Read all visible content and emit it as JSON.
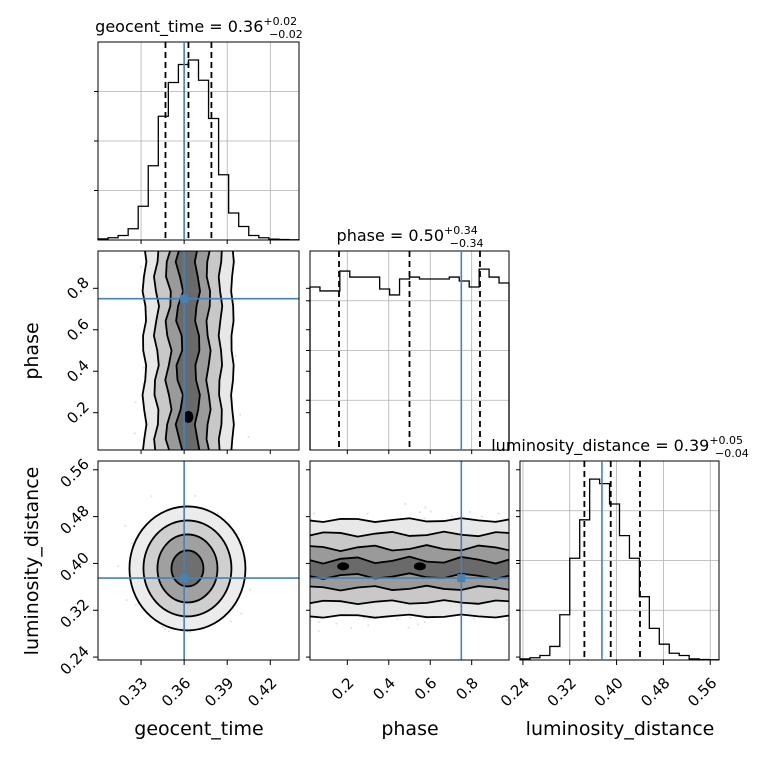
{
  "colors": {
    "truth": "#4682b4",
    "line": "#000000",
    "grid": "#b0b0b0",
    "scatter": "#9a9a9a"
  },
  "chart_data": {
    "type": "corner",
    "parameters": [
      "geocent_time",
      "phase",
      "luminosity_distance"
    ],
    "axis_labels": {
      "geocent_time": "geocent_time",
      "phase": "phase",
      "luminosity_distance": "luminosity_distance"
    },
    "ranges": {
      "geocent_time": [
        0.3,
        0.44
      ],
      "phase": [
        0.02,
        0.98
      ],
      "luminosity_distance": [
        0.235,
        0.575
      ]
    },
    "ticks": {
      "geocent_time": [
        "0.33",
        "0.36",
        "0.39",
        "0.42"
      ],
      "phase": [
        "0.2",
        "0.4",
        "0.6",
        "0.8"
      ],
      "luminosity_distance": [
        "0.24",
        "0.32",
        "0.40",
        "0.48",
        "0.56"
      ]
    },
    "truths": {
      "geocent_time": 0.36,
      "phase": 0.75,
      "luminosity_distance": 0.375
    },
    "quantiles": {
      "geocent_time": [
        0.347,
        0.363,
        0.379
      ],
      "phase": [
        0.16,
        0.5,
        0.84
      ],
      "luminosity_distance": [
        0.345,
        0.39,
        0.44
      ]
    },
    "titles": {
      "geocent_time": {
        "text": "geocent_time = 0.36",
        "plus": "+0.02",
        "minus": "−0.02"
      },
      "phase": {
        "text": "phase = 0.50",
        "plus": "+0.34",
        "minus": "−0.34"
      },
      "luminosity_distance": {
        "text": "luminosity_distance = 0.39",
        "plus": "+0.05",
        "minus": "−0.04"
      }
    },
    "histograms": {
      "geocent_time": {
        "edges": [
          0.3,
          0.307,
          0.314,
          0.321,
          0.328,
          0.335,
          0.342,
          0.349,
          0.356,
          0.363,
          0.37,
          0.377,
          0.384,
          0.391,
          0.398,
          0.405,
          0.412,
          0.419,
          0.426,
          0.433,
          0.44
        ],
        "counts": [
          0.5,
          1,
          2,
          5,
          15,
          33,
          55,
          70,
          78,
          80,
          71,
          54,
          29,
          12,
          6,
          2,
          1,
          0.4,
          0.2,
          0.1
        ]
      },
      "phase": {
        "edges": [
          0.02,
          0.068,
          0.116,
          0.164,
          0.212,
          0.26,
          0.308,
          0.356,
          0.404,
          0.452,
          0.5,
          0.548,
          0.596,
          0.644,
          0.692,
          0.74,
          0.788,
          0.836,
          0.884,
          0.932,
          0.98
        ],
        "counts": [
          82,
          80,
          80,
          90,
          87,
          87,
          87,
          81,
          78,
          86,
          87,
          86,
          86,
          86,
          87,
          85,
          82,
          91,
          87,
          84
        ]
      },
      "luminosity_distance": {
        "edges": [
          0.235,
          0.252,
          0.269,
          0.286,
          0.303,
          0.32,
          0.337,
          0.354,
          0.371,
          0.388,
          0.405,
          0.422,
          0.439,
          0.456,
          0.473,
          0.49,
          0.507,
          0.524,
          0.541,
          0.558,
          0.575
        ],
        "counts": [
          0.5,
          1,
          2,
          6,
          20,
          45,
          62,
          80,
          78,
          69,
          55,
          45,
          28,
          14,
          7,
          3,
          2,
          0.5,
          0.2,
          0.1
        ]
      }
    },
    "contour_levels": [
      0.12,
      0.35,
      0.6,
      0.85
    ],
    "contour_peaks": [
      {
        "pair": "phase|geocent_time",
        "x": 0.363,
        "y": 0.18
      },
      {
        "pair": "luminosity_distance|phase",
        "x": 0.18,
        "y": 0.395
      },
      {
        "pair": "luminosity_distance|phase",
        "x": 0.55,
        "y": 0.395
      }
    ]
  }
}
